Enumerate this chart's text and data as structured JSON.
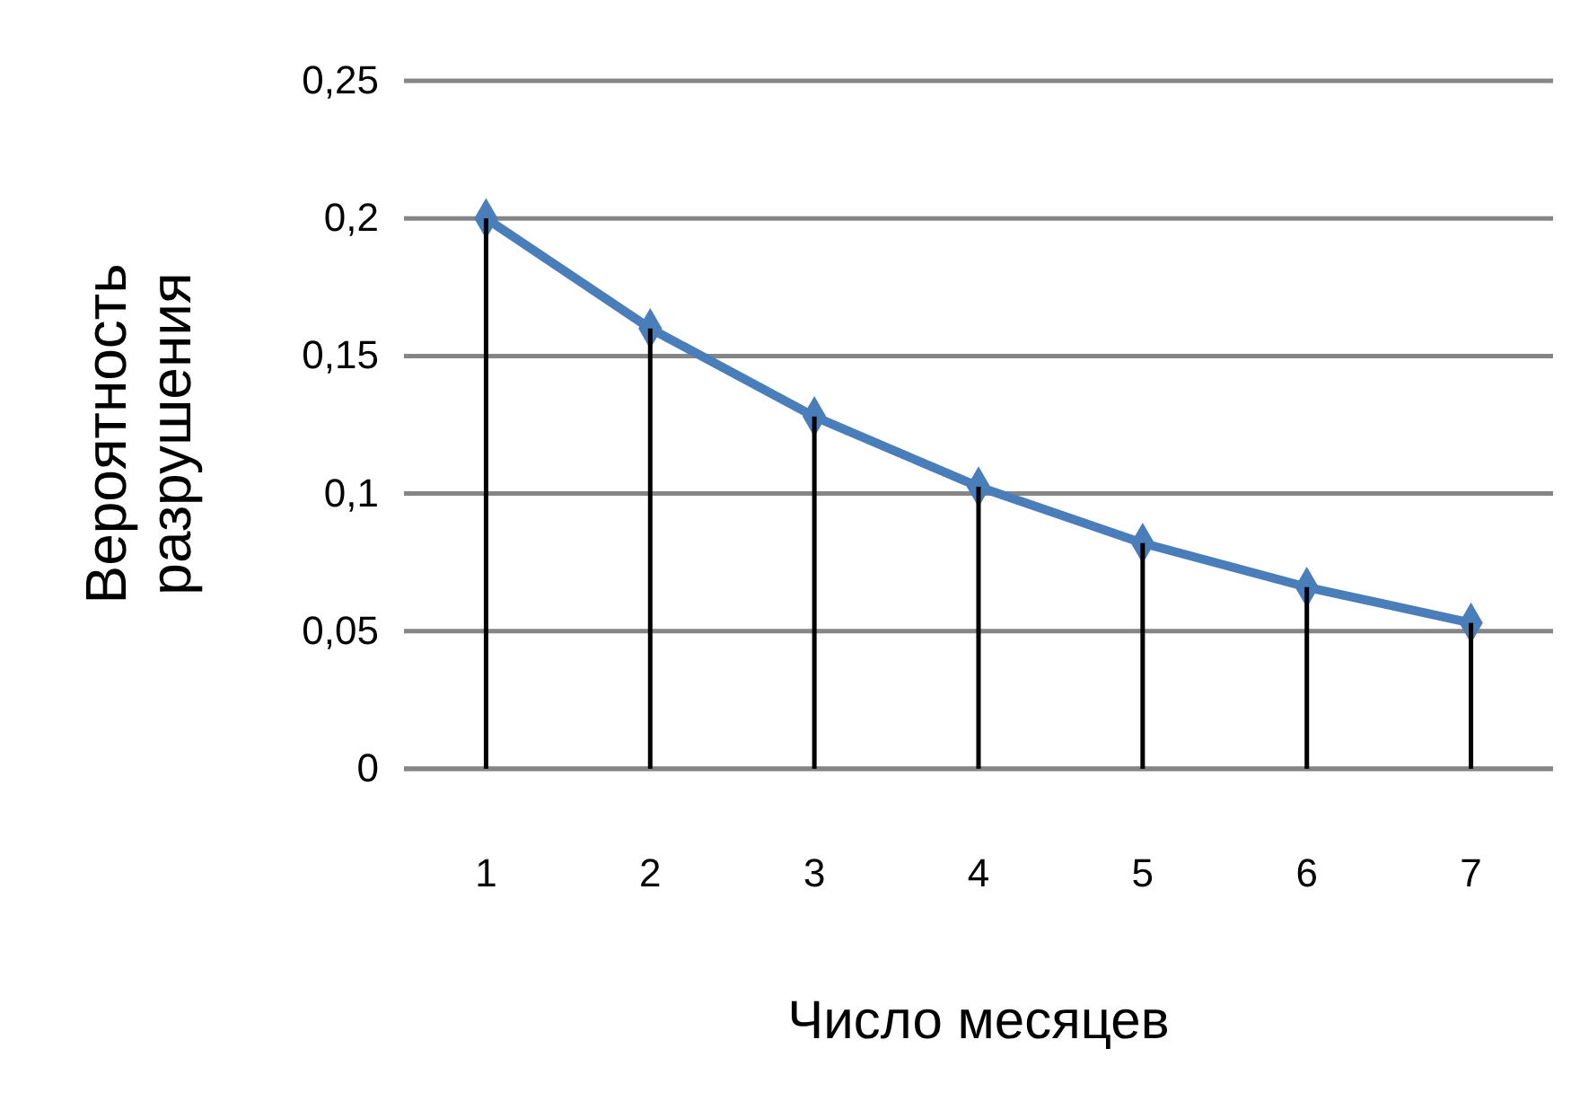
{
  "chart_data": {
    "type": "line",
    "xlabel": "Число месяцев",
    "ylabel": "Вероятность разрушения",
    "categories": [
      "1",
      "2",
      "3",
      "4",
      "5",
      "6",
      "7"
    ],
    "series": [
      {
        "color": "#4a7ebb",
        "marker": "diamond",
        "line_style": "solid",
        "values": [
          0.2,
          0.16,
          0.128,
          0.1025,
          0.082,
          0.066,
          0.053
        ]
      },
      {
        "type": "bar",
        "color": "#000000",
        "values": [
          0.2,
          0.16,
          0.128,
          0.1025,
          0.082,
          0.066,
          0.053
        ]
      }
    ],
    "ylim": [
      0,
      0.25
    ],
    "yticks": [
      {
        "value": 0,
        "label": "0"
      },
      {
        "value": 0.05,
        "label": "0,05"
      },
      {
        "value": 0.1,
        "label": "0,1"
      },
      {
        "value": 0.15,
        "label": "0,15"
      },
      {
        "value": 0.2,
        "label": "0,2"
      },
      {
        "value": 0.25,
        "label": "0,25"
      }
    ],
    "grid": "y"
  }
}
